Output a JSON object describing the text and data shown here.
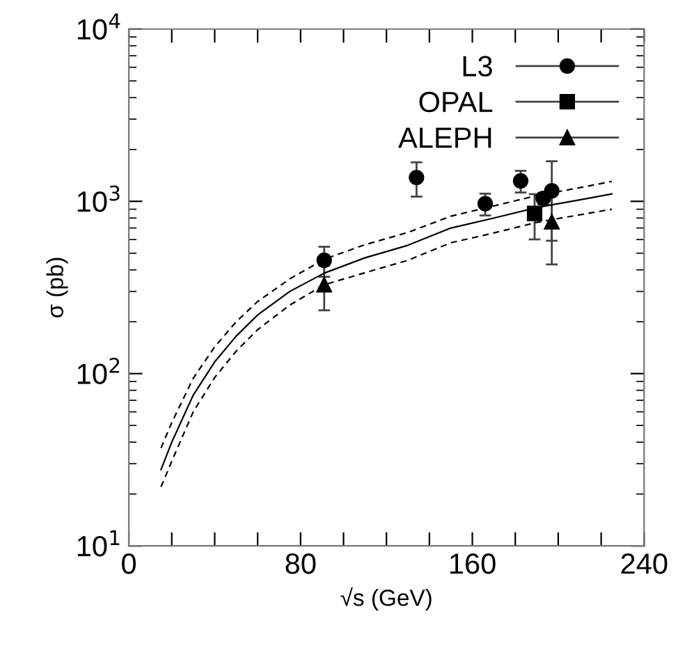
{
  "chart_data": {
    "type": "scatter",
    "xlabel": "√s (GeV)",
    "ylabel": "σ (pb)",
    "log": "y",
    "xlim": [
      0,
      240
    ],
    "ylim": [
      10,
      10000
    ],
    "xticks": [
      0,
      {
        "value": 20,
        "label": null
      },
      {
        "value": 40,
        "label": null
      },
      {
        "value": 60,
        "label": null
      },
      80,
      {
        "value": 100,
        "label": null
      },
      {
        "value": 120,
        "label": null
      },
      {
        "value": 140,
        "label": null
      },
      160,
      {
        "value": 180,
        "label": null
      },
      {
        "value": 200,
        "label": null
      },
      {
        "value": 220,
        "label": null
      },
      240
    ],
    "yticks": [
      {
        "value": 10,
        "label": "10$^{1}$"
      },
      {
        "value": 100,
        "label": "10$^{2}$"
      },
      {
        "value": 1000,
        "label": "10$^{3}$"
      },
      {
        "value": 10000,
        "label": "10$^{4}$"
      }
    ],
    "grid": false,
    "legend": "top right",
    "series": [
      {
        "name": "L3",
        "color": "#000000",
        "marker": "circle",
        "x": [
          91,
          134,
          166,
          182.5,
          193,
          197
        ],
        "values": [
          455,
          1375,
          968,
          1315,
          1040,
          1150
        ],
        "errors": [
          90,
          310,
          140,
          190,
          80,
          560
        ]
      },
      {
        "name": "OPAL",
        "color": "#000000",
        "marker": "square",
        "x": [
          189
        ],
        "values": [
          851
        ],
        "errors": [
          250
        ]
      },
      {
        "name": "ALEPH",
        "color": "#000000",
        "marker": "triangle",
        "x": [
          91,
          197
        ],
        "values": [
          328,
          760
        ],
        "errors": [
          95,
          330
        ]
      },
      {
        "type": "line",
        "color": "#000000",
        "marker": "none",
        "line_style": "solid",
        "x": [
          15,
          20,
          30,
          40,
          50,
          60,
          75,
          91,
          110,
          130,
          150,
          170,
          190,
          210,
          225
        ],
        "values": [
          27.7,
          40,
          75,
          117,
          165,
          219,
          300,
          383,
          470,
          556,
          700,
          800,
          920,
          1020,
          1104
        ]
      },
      {
        "type": "line",
        "color": "#000000",
        "marker": "none",
        "line_style": "dashed",
        "x": [
          15,
          20,
          30,
          40,
          50,
          60,
          75,
          91,
          110,
          130,
          150,
          170,
          190,
          210,
          225
        ],
        "values": [
          37,
          52,
          94,
          143,
          200,
          262,
          355,
          461,
          560,
          660,
          820,
          940,
          1080,
          1200,
          1306
        ]
      },
      {
        "type": "line",
        "color": "#000000",
        "marker": "none",
        "line_style": "dashed",
        "x": [
          15,
          20,
          30,
          40,
          50,
          60,
          75,
          91,
          110,
          130,
          150,
          170,
          190,
          210,
          225
        ],
        "values": [
          22,
          31,
          60,
          95,
          135,
          180,
          250,
          328,
          385,
          455,
          575,
          655,
          755,
          835,
          900
        ]
      }
    ]
  }
}
